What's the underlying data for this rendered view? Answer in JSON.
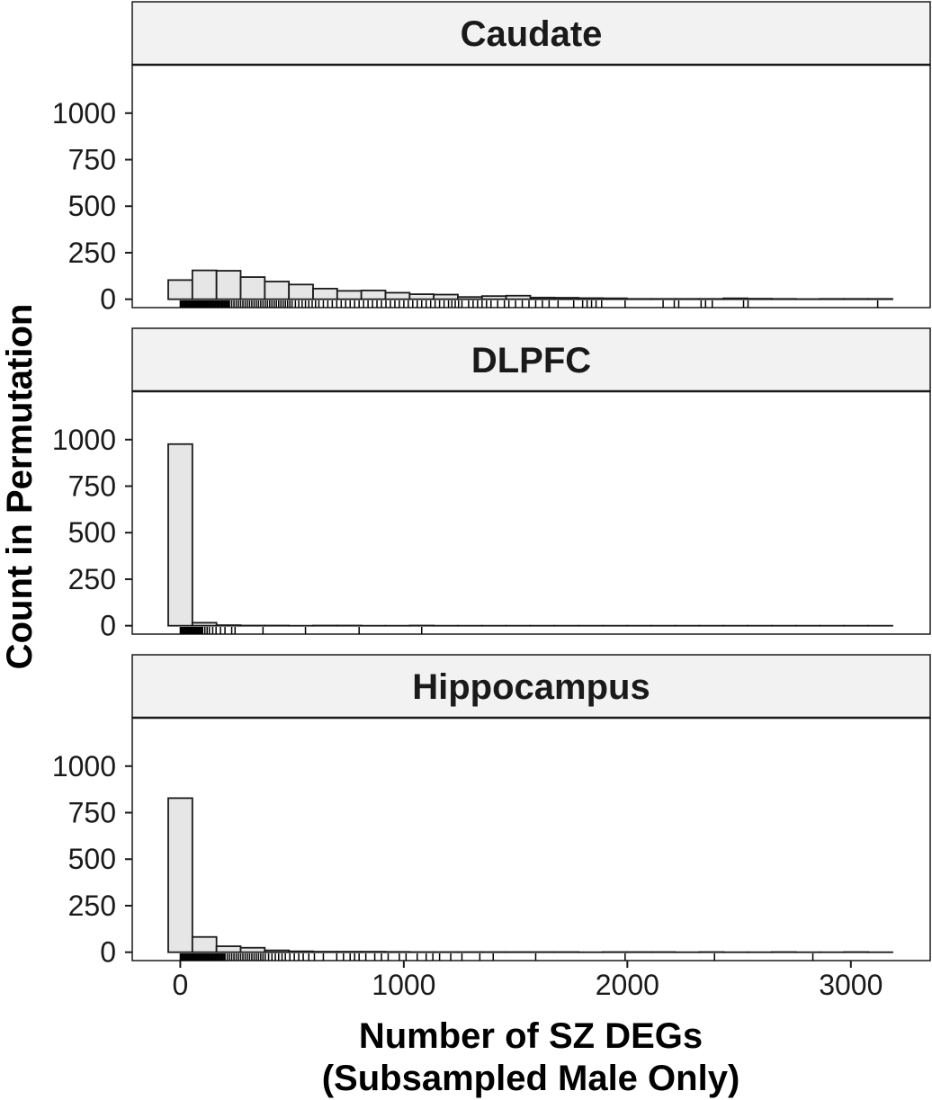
{
  "chart_data": {
    "type": "bar",
    "xlabel_line1": "Number of SZ DEGs",
    "xlabel_line2": "(Subsampled Male Only)",
    "ylabel": "Count in Permutation",
    "xlim": [
      -215,
      3355
    ],
    "ylim": [
      -45,
      1260
    ],
    "x_ticks": [
      0,
      1000,
      2000,
      3000
    ],
    "x_tick_labels": [
      "0",
      "1000",
      "2000",
      "3000"
    ],
    "y_ticks": [
      0,
      250,
      500,
      750,
      1000
    ],
    "y_tick_labels": [
      "0",
      "250",
      "500",
      "750",
      "1000"
    ],
    "bin_width": 108,
    "bin_starts": [
      -54,
      54,
      162,
      270,
      378,
      486,
      594,
      702,
      810,
      918,
      1026,
      1134,
      1242,
      1350,
      1458,
      1566,
      1674,
      1782,
      1890,
      1998,
      2106,
      2214,
      2322,
      2430,
      2538,
      2646,
      2754,
      2862,
      2970,
      3078
    ],
    "bar_fill": "#e6e6e6",
    "bar_stroke": "#1a1a1a",
    "panels": [
      {
        "title": "Caudate",
        "counts": [
          103,
          155,
          153,
          119,
          95,
          79,
          57,
          45,
          47,
          35,
          27,
          25,
          12,
          17,
          19,
          9,
          8,
          6,
          5,
          2,
          2,
          2,
          2,
          5,
          3,
          2,
          1,
          2,
          2,
          2
        ],
        "rug": [
          0,
          3,
          6,
          9,
          12,
          15,
          18,
          21,
          24,
          27,
          30,
          33,
          36,
          39,
          42,
          45,
          48,
          51,
          54,
          57,
          60,
          63,
          66,
          69,
          72,
          75,
          78,
          81,
          84,
          87,
          90,
          95,
          100,
          105,
          110,
          115,
          120,
          125,
          130,
          135,
          140,
          145,
          150,
          155,
          160,
          165,
          170,
          175,
          180,
          185,
          190,
          195,
          200,
          205,
          210,
          215,
          220,
          230,
          240,
          250,
          260,
          270,
          280,
          290,
          300,
          310,
          320,
          330,
          340,
          350,
          360,
          370,
          380,
          390,
          400,
          410,
          420,
          430,
          440,
          450,
          460,
          470,
          480,
          490,
          500,
          515,
          530,
          545,
          560,
          575,
          590,
          605,
          620,
          640,
          660,
          680,
          700,
          720,
          740,
          760,
          780,
          800,
          820,
          840,
          860,
          880,
          900,
          920,
          940,
          960,
          980,
          1000,
          1020,
          1040,
          1060,
          1080,
          1100,
          1120,
          1140,
          1160,
          1180,
          1200,
          1215,
          1230,
          1245,
          1260,
          1290,
          1310,
          1330,
          1350,
          1370,
          1390,
          1420,
          1450,
          1470,
          1500,
          1530,
          1560,
          1590,
          1620,
          1650,
          1690,
          1760,
          1800,
          1820,
          1840,
          1860,
          1885,
          1990,
          2160,
          2210,
          2230,
          2330,
          2350,
          2380,
          2520,
          2540,
          3120
        ]
      },
      {
        "title": "DLPFC",
        "counts": [
          976,
          16,
          3,
          1,
          1,
          0,
          1,
          1,
          0,
          0,
          1,
          0,
          0,
          0,
          0,
          0,
          0,
          0,
          0,
          0,
          0,
          0,
          0,
          0,
          0,
          0,
          0,
          0,
          0,
          0
        ],
        "rug": [
          0,
          4,
          8,
          12,
          16,
          20,
          24,
          28,
          32,
          36,
          40,
          44,
          48,
          52,
          56,
          60,
          64,
          68,
          72,
          76,
          80,
          84,
          88,
          92,
          96,
          100,
          110,
          120,
          130,
          145,
          160,
          180,
          200,
          230,
          245,
          370,
          560,
          800,
          1080
        ]
      },
      {
        "title": "Hippocampus",
        "counts": [
          828,
          82,
          32,
          24,
          10,
          5,
          3,
          3,
          3,
          2,
          1,
          1,
          1,
          1,
          1,
          1,
          1,
          0,
          1,
          1,
          1,
          0,
          1,
          0,
          0,
          1,
          0,
          0,
          1,
          0
        ],
        "rug": [
          0,
          3,
          6,
          9,
          12,
          15,
          18,
          21,
          24,
          27,
          30,
          33,
          36,
          39,
          42,
          45,
          48,
          51,
          54,
          57,
          60,
          63,
          66,
          69,
          72,
          75,
          78,
          81,
          84,
          87,
          90,
          95,
          100,
          105,
          110,
          115,
          120,
          125,
          130,
          135,
          140,
          145,
          150,
          155,
          160,
          165,
          170,
          175,
          180,
          185,
          190,
          195,
          200,
          210,
          220,
          230,
          240,
          250,
          260,
          270,
          280,
          290,
          300,
          310,
          320,
          330,
          340,
          350,
          360,
          370,
          380,
          395,
          410,
          425,
          440,
          455,
          470,
          490,
          510,
          530,
          550,
          575,
          600,
          640,
          700,
          730,
          760,
          780,
          800,
          830,
          870,
          900,
          930,
          980,
          1010,
          1060,
          1100,
          1130,
          1160,
          1210,
          1260,
          1340,
          1400,
          1590,
          1990,
          2390,
          2830
        ]
      }
    ]
  }
}
